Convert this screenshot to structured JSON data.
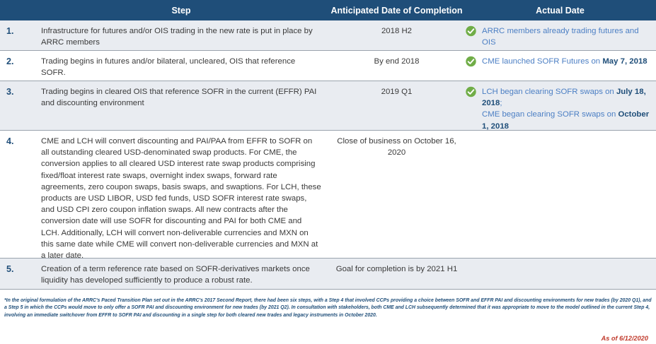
{
  "header": {
    "step": "Step",
    "anticipated": "Anticipated Date of Completion",
    "actual": "Actual Date"
  },
  "rows": [
    {
      "num": "1.",
      "step": "Infrastructure for futures and/or OIS trading in the new rate is put in place by ARRC members",
      "date": "2018 H2",
      "actual_parts": [
        {
          "t": "ARRC members already trading futures and OIS",
          "b": false
        }
      ],
      "checked": true
    },
    {
      "num": "2.",
      "step": "Trading begins in futures and/or bilateral, uncleared, OIS that reference SOFR.",
      "date": "By end 2018",
      "actual_parts": [
        {
          "t": "CME launched SOFR Futures on ",
          "b": false
        },
        {
          "t": "May 7, 2018",
          "b": true
        }
      ],
      "checked": true
    },
    {
      "num": "3.",
      "step": "Trading begins in cleared OIS that reference SOFR in the current (EFFR) PAI and discounting environment",
      "date": "2019 Q1",
      "actual_parts": [
        {
          "t": "LCH began clearing SOFR swaps on ",
          "b": false
        },
        {
          "t": "July 18, 2018",
          "b": true
        },
        {
          "t": ";",
          "b": false
        },
        {
          "br": true
        },
        {
          "t": "CME began clearing SOFR swaps on ",
          "b": false
        },
        {
          "t": "October 1, 2018",
          "b": true
        }
      ],
      "checked": true
    },
    {
      "num": "4.",
      "step": "CME and LCH will convert discounting and PAI/PAA from EFFR to SOFR on all outstanding cleared USD-denominated swap products. For CME, the conversion applies to all cleared USD interest rate swap products comprising fixed/float interest rate swaps, overnight index swaps, forward rate agreements, zero coupon swaps, basis swaps, and swaptions.  For LCH, these products are USD LIBOR, USD fed funds, USD SOFR interest rate swaps, and USD CPI zero coupon inflation swaps. All new contracts after the conversion date will use SOFR for discounting and PAI for both CME and LCH. Additionally, LCH will convert non-deliverable currencies and MXN on this same date while CME will convert non-deliverable currencies and MXN at a later date.",
      "date": "Close of business on October 16, 2020",
      "actual_parts": [],
      "checked": false
    },
    {
      "num": "5.",
      "step": "Creation of a term reference rate based on SOFR-derivatives markets once liquidity has developed sufficiently to produce a robust rate.",
      "date": "Goal for completion is by 2021 H1",
      "actual_parts": [],
      "checked": false
    }
  ],
  "footnote": "*In the original formulation of the ARRC's Paced Transition Plan set out in the ARRC's 2017 Second Report, there had been six steps, with a Step 4 that involved CCPs providing a choice between SOFR and EFFR PAI and discounting environments for new trades (by 2020 Q1), and a Step 5 in which the CCPs would move to only offer a SOFR PAI and discounting environment for new trades (by 2021 Q2).  In consultation with stakeholders, both CME and LCH subsequently determined that it was appropriate to move to the model outlined in the current Step 4, involving an immediate switchover from EFFR to SOFR PAI and discounting in a single step for both cleared new trades and legacy instruments in October 2020.",
  "as_of": "As of 6/12/2020",
  "colors": {
    "header_bg": "#1f4e79",
    "check": "#70ad47",
    "link": "#4c7fc4",
    "as_of": "#c0392b"
  }
}
